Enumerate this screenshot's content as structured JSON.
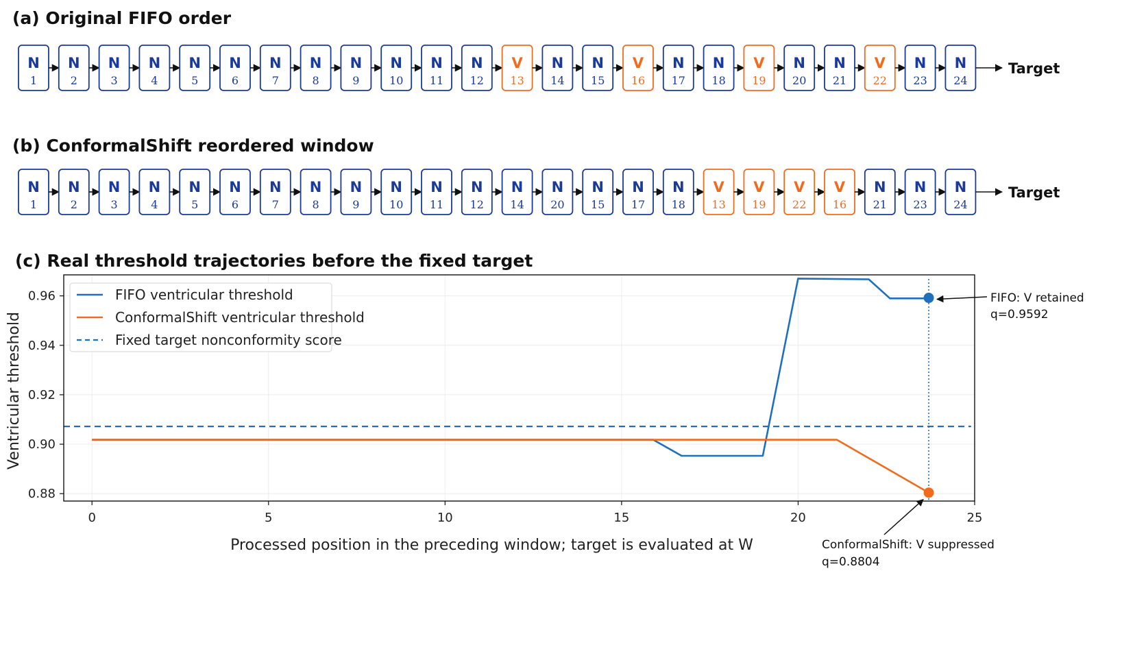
{
  "panels": {
    "a_title": "(a) Original FIFO order",
    "b_title": "(b) ConformalShift reordered window",
    "c_title": "(c) Real threshold trajectories before the fixed target"
  },
  "sequences": {
    "target_label": "Target",
    "fifo": [
      {
        "t": "N",
        "n": "1"
      },
      {
        "t": "N",
        "n": "2"
      },
      {
        "t": "N",
        "n": "3"
      },
      {
        "t": "N",
        "n": "4"
      },
      {
        "t": "N",
        "n": "5"
      },
      {
        "t": "N",
        "n": "6"
      },
      {
        "t": "N",
        "n": "7"
      },
      {
        "t": "N",
        "n": "8"
      },
      {
        "t": "N",
        "n": "9"
      },
      {
        "t": "N",
        "n": "10"
      },
      {
        "t": "N",
        "n": "11"
      },
      {
        "t": "N",
        "n": "12"
      },
      {
        "t": "V",
        "n": "13"
      },
      {
        "t": "N",
        "n": "14"
      },
      {
        "t": "N",
        "n": "15"
      },
      {
        "t": "V",
        "n": "16"
      },
      {
        "t": "N",
        "n": "17"
      },
      {
        "t": "N",
        "n": "18"
      },
      {
        "t": "V",
        "n": "19"
      },
      {
        "t": "N",
        "n": "20"
      },
      {
        "t": "N",
        "n": "21"
      },
      {
        "t": "V",
        "n": "22"
      },
      {
        "t": "N",
        "n": "23"
      },
      {
        "t": "N",
        "n": "24"
      }
    ],
    "conformal": [
      {
        "t": "N",
        "n": "1"
      },
      {
        "t": "N",
        "n": "2"
      },
      {
        "t": "N",
        "n": "3"
      },
      {
        "t": "N",
        "n": "4"
      },
      {
        "t": "N",
        "n": "5"
      },
      {
        "t": "N",
        "n": "6"
      },
      {
        "t": "N",
        "n": "7"
      },
      {
        "t": "N",
        "n": "8"
      },
      {
        "t": "N",
        "n": "9"
      },
      {
        "t": "N",
        "n": "10"
      },
      {
        "t": "N",
        "n": "11"
      },
      {
        "t": "N",
        "n": "12"
      },
      {
        "t": "N",
        "n": "14"
      },
      {
        "t": "N",
        "n": "20"
      },
      {
        "t": "N",
        "n": "15"
      },
      {
        "t": "N",
        "n": "17"
      },
      {
        "t": "N",
        "n": "18"
      },
      {
        "t": "V",
        "n": "13"
      },
      {
        "t": "V",
        "n": "19"
      },
      {
        "t": "V",
        "n": "22"
      },
      {
        "t": "V",
        "n": "16"
      },
      {
        "t": "N",
        "n": "21"
      },
      {
        "t": "N",
        "n": "23"
      },
      {
        "t": "N",
        "n": "24"
      }
    ]
  },
  "colors": {
    "normal": "#1a3a9c",
    "ventricular": "#f26b1d",
    "fifo_line": "#1f6fbf",
    "conformal_line": "#f26b1d"
  },
  "chart_data": {
    "type": "line",
    "title": "(c) Real threshold trajectories before the fixed target",
    "xlabel": "Processed position in the preceding window; target is evaluated at W",
    "ylabel": "Ventricular threshold",
    "xlim": [
      -0.8,
      25
    ],
    "ylim": [
      0.877,
      0.9685
    ],
    "xticks": [
      0,
      5,
      10,
      15,
      20,
      25
    ],
    "yticks": [
      0.88,
      0.9,
      0.92,
      0.94,
      0.96
    ],
    "ytick_labels": [
      "0.88",
      "0.90",
      "0.92",
      "0.94",
      "0.96"
    ],
    "grid": true,
    "legend_position": "top-left",
    "series": [
      {
        "name": "FIFO ventricular threshold",
        "style": "solid",
        "color": "#1f6fbf",
        "x": [
          0,
          15.9,
          16.7,
          19.0,
          20.0,
          22.0,
          22.6,
          23.7
        ],
        "y": [
          0.9018,
          0.9018,
          0.8953,
          0.8953,
          0.967,
          0.9667,
          0.959,
          0.959
        ]
      },
      {
        "name": "ConformalShift ventricular threshold",
        "style": "solid",
        "color": "#f26b1d",
        "x": [
          0,
          21.1,
          23.7
        ],
        "y": [
          0.9018,
          0.9018,
          0.8804
        ]
      },
      {
        "name": "Fixed target nonconformity score",
        "style": "dashed",
        "color": "#1f6fbf",
        "x": [
          -0.8,
          24.9
        ],
        "y": [
          0.9072,
          0.9072
        ]
      }
    ],
    "target_x": 23.7,
    "annotations": [
      {
        "text1": "FIFO: V retained",
        "text2": "q=0.9592",
        "x": 23.7,
        "y": 0.9592,
        "color": "#1f6fbf"
      },
      {
        "text1": "ConformalShift: V suppressed",
        "text2": "q=0.8804",
        "x": 23.7,
        "y": 0.8804,
        "color": "#f26b1d"
      }
    ]
  }
}
